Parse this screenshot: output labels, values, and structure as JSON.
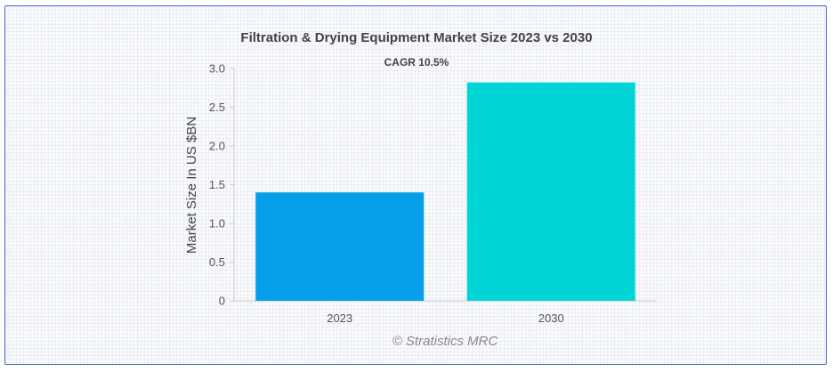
{
  "chart_data": {
    "type": "bar",
    "title": "Filtration & Drying Equipment Market Size 2023 vs 2030",
    "subtitle": "CAGR 10.5%",
    "xlabel": "",
    "ylabel": "Market Size In US $BN",
    "categories": [
      "2023",
      "2030"
    ],
    "values": [
      1.4,
      2.82
    ],
    "colors": [
      "#049fe8",
      "#01d4d4"
    ],
    "ylim": [
      0,
      3.0
    ],
    "yticks": [
      "0",
      "0.5",
      "1.0",
      "1.5",
      "2.0",
      "2.5",
      "3.0"
    ],
    "grid": false,
    "legend": "none"
  },
  "credit": "© Stratistics MRC"
}
